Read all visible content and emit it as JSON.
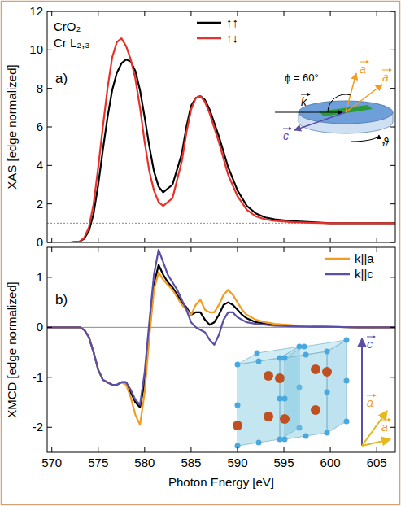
{
  "chart_data": [
    {
      "type": "line",
      "title": "a)",
      "y_label": "XAS [edge normalized]",
      "annotations": [
        "CrO₂",
        "Cr L₂,₃"
      ],
      "xlim": [
        569.5,
        607
      ],
      "xticks": [
        570,
        575,
        580,
        585,
        590,
        595,
        600,
        605
      ],
      "ylim": [
        0,
        12
      ],
      "yticks": [
        0,
        2,
        4,
        6,
        8,
        10,
        12
      ],
      "tick_labels": "y",
      "legend": "top",
      "reference_line": 1,
      "x": [
        569,
        570,
        571,
        572,
        573,
        573.5,
        574,
        574.5,
        575,
        575.5,
        576,
        576.5,
        577,
        577.5,
        578,
        578.5,
        579,
        579.5,
        580,
        580.5,
        581,
        581.5,
        582,
        583,
        584,
        584.5,
        585,
        585.5,
        586,
        586.5,
        587,
        588,
        589,
        590,
        591,
        592,
        593,
        594,
        596,
        598,
        600,
        603,
        607
      ],
      "series": [
        {
          "name": "↑↑",
          "color": "#000000",
          "values": [
            0,
            0,
            0,
            0,
            0.05,
            0.2,
            0.6,
            1.5,
            3.0,
            4.8,
            6.5,
            7.9,
            8.8,
            9.3,
            9.5,
            9.4,
            8.9,
            7.9,
            6.5,
            5.0,
            3.7,
            2.9,
            2.6,
            3.0,
            4.6,
            6.0,
            7.1,
            7.5,
            7.6,
            7.4,
            6.9,
            5.5,
            3.9,
            2.7,
            1.9,
            1.5,
            1.3,
            1.2,
            1.1,
            1.05,
            1.0,
            1.0,
            1.0
          ]
        },
        {
          "name": "↑↓",
          "color": "#e8312a",
          "values": [
            0,
            0,
            0,
            0,
            0.05,
            0.25,
            0.8,
            2.0,
            3.9,
            6.0,
            8.0,
            9.6,
            10.4,
            10.6,
            10.2,
            9.5,
            8.5,
            7.0,
            5.2,
            3.7,
            2.7,
            2.1,
            1.9,
            2.3,
            4.2,
            5.7,
            6.9,
            7.5,
            7.6,
            7.3,
            6.7,
            5.2,
            3.5,
            2.4,
            1.7,
            1.35,
            1.2,
            1.12,
            1.05,
            1.02,
            1.0,
            1.0,
            1.0
          ]
        }
      ],
      "inset": {
        "k": "k",
        "c": "c",
        "a": [
          "a",
          "a"
        ],
        "angle": "ϕ = 60°",
        "rotation": "ϑ"
      }
    },
    {
      "type": "line",
      "title": "b)",
      "x_label": "Photon Energy [eV]",
      "y_label": "XMCD [edge normalized]",
      "xlim": [
        569.5,
        607
      ],
      "xticks": [
        570,
        575,
        580,
        585,
        590,
        595,
        600,
        605
      ],
      "ylim": [
        -2.5,
        1.6
      ],
      "yticks": [
        -2,
        -1,
        0,
        1
      ],
      "legend": "upper right",
      "reference_line": 0,
      "x": [
        569,
        570,
        571,
        572,
        573,
        573.5,
        574,
        574.5,
        575,
        575.5,
        576,
        576.5,
        577,
        577.5,
        578,
        578.5,
        579,
        579.5,
        580,
        580.5,
        581,
        581.5,
        582,
        582.5,
        583,
        583.5,
        584,
        584.5,
        585,
        585.5,
        586,
        586.5,
        587,
        587.5,
        588,
        588.5,
        589,
        589.5,
        590,
        590.5,
        591,
        592,
        593,
        594,
        596,
        598,
        600,
        603,
        607
      ],
      "series": [
        {
          "color": "#000000",
          "values": [
            0,
            0,
            0,
            0,
            0,
            -0.05,
            -0.2,
            -0.5,
            -0.85,
            -1.05,
            -1.1,
            -1.15,
            -1.15,
            -1.1,
            -1.1,
            -1.3,
            -1.5,
            -1.6,
            -1.1,
            -0.1,
            0.85,
            1.25,
            1.05,
            0.9,
            0.8,
            0.65,
            0.5,
            0.4,
            0.25,
            0.3,
            0.3,
            0.15,
            0.05,
            0.1,
            0.25,
            0.45,
            0.5,
            0.45,
            0.35,
            0.25,
            0.18,
            0.1,
            0.07,
            0.05,
            0.03,
            0.02,
            0.01,
            0,
            0
          ]
        },
        {
          "name": "k||a",
          "color": "#f39c1f",
          "values": [
            0,
            0,
            0,
            0,
            0,
            -0.05,
            -0.2,
            -0.5,
            -0.85,
            -1.05,
            -1.1,
            -1.15,
            -1.15,
            -1.1,
            -1.15,
            -1.4,
            -1.75,
            -1.95,
            -1.3,
            -0.2,
            0.75,
            1.1,
            0.95,
            0.85,
            0.75,
            0.6,
            0.45,
            0.35,
            0.25,
            0.45,
            0.55,
            0.35,
            0.3,
            0.3,
            0.45,
            0.65,
            0.75,
            0.65,
            0.5,
            0.35,
            0.25,
            0.15,
            0.1,
            0.07,
            0.04,
            0.02,
            0.01,
            0,
            0
          ]
        },
        {
          "name": "k||c",
          "color": "#5a4fa8",
          "values": [
            0,
            0,
            0,
            0,
            0,
            -0.05,
            -0.2,
            -0.5,
            -0.85,
            -1.05,
            -1.1,
            -1.15,
            -1.15,
            -1.1,
            -1.1,
            -1.25,
            -1.45,
            -1.55,
            -0.9,
            0.1,
            1.05,
            1.55,
            1.3,
            1.05,
            0.9,
            0.75,
            0.55,
            0.35,
            0.1,
            0.0,
            -0.05,
            -0.1,
            -0.25,
            -0.35,
            -0.15,
            0.15,
            0.3,
            0.3,
            0.2,
            0.15,
            0.1,
            0.07,
            0.05,
            0.03,
            0.02,
            0.01,
            0.01,
            0,
            0
          ]
        }
      ],
      "inset": {
        "c": "c",
        "a": [
          "a",
          "a"
        ]
      }
    }
  ]
}
